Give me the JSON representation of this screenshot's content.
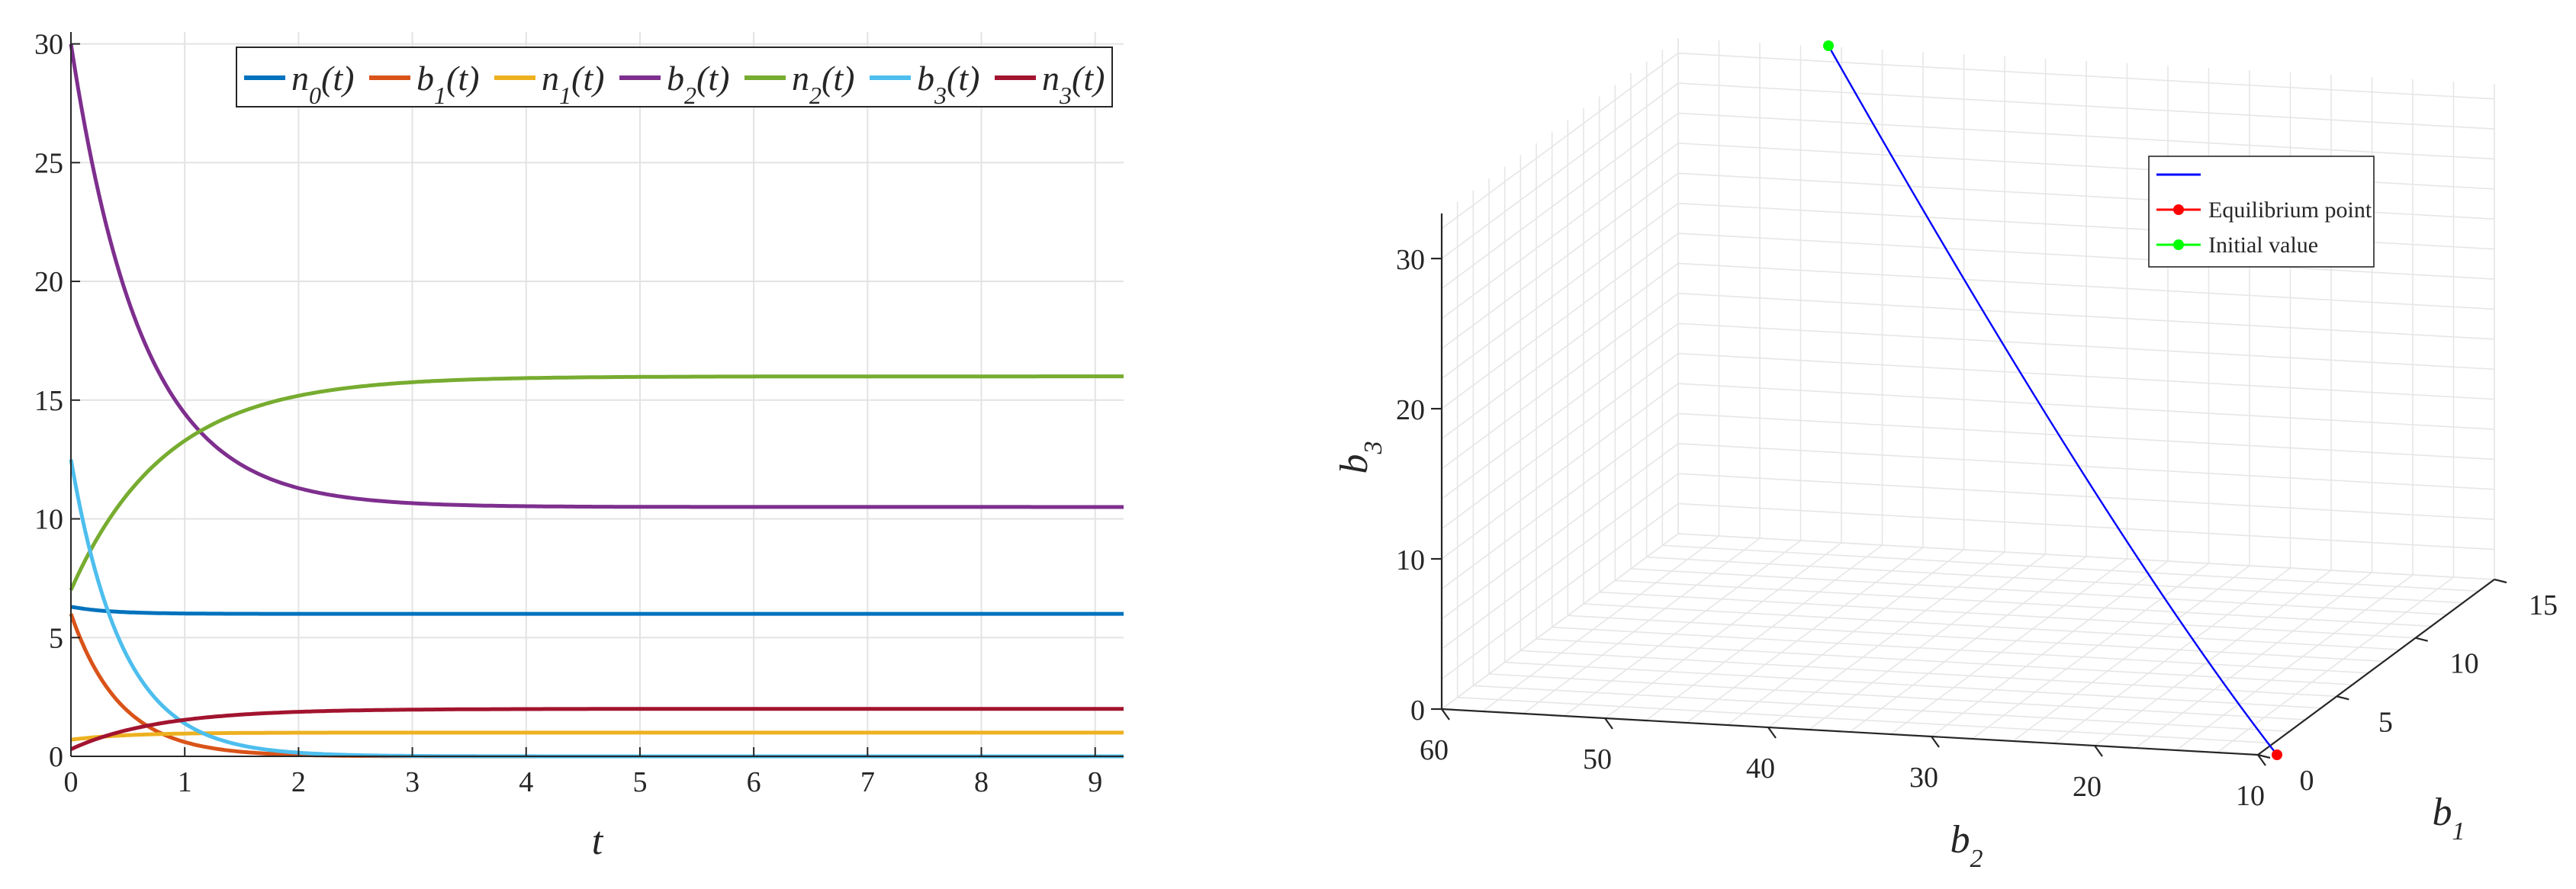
{
  "chart_data": [
    {
      "type": "line",
      "xlabel": "t",
      "ylabel": "",
      "xlim": [
        0,
        9.25
      ],
      "ylim": [
        0,
        30.5
      ],
      "x_ticks": [
        "0",
        "1",
        "2",
        "3",
        "4",
        "5",
        "6",
        "7",
        "8",
        "9"
      ],
      "y_ticks": [
        "0",
        "5",
        "10",
        "15",
        "20",
        "25",
        "30"
      ],
      "grid": true,
      "legend_position": "top-right",
      "series": [
        {
          "name": "n0",
          "sub": "0",
          "letter": "n",
          "color": "#0072BD",
          "start": 6.3,
          "end": 6.0,
          "rate": 3.0
        },
        {
          "name": "b1",
          "sub": "1",
          "letter": "b",
          "color": "#D95319",
          "start": 6.0,
          "end": 0.0,
          "rate": 2.3
        },
        {
          "name": "n1",
          "sub": "1",
          "letter": "n",
          "color": "#EDB120",
          "start": 0.7,
          "end": 1.0,
          "rate": 2.0
        },
        {
          "name": "b2",
          "sub": "2",
          "letter": "b",
          "color": "#7E2F8E",
          "start": 30.0,
          "end": 10.5,
          "rate": 1.6
        },
        {
          "name": "n2",
          "sub": "2",
          "letter": "n",
          "color": "#77AC30",
          "start": 7.0,
          "end": 16.0,
          "rate": 1.2
        },
        {
          "name": "b3",
          "sub": "3",
          "letter": "b",
          "color": "#4DBEEE",
          "start": 12.5,
          "end": 0.0,
          "rate": 2.2
        },
        {
          "name": "n3",
          "sub": "3",
          "letter": "n",
          "color": "#A2142F",
          "start": 0.3,
          "end": 2.0,
          "rate": 1.3
        }
      ]
    },
    {
      "type": "line3d",
      "xlabel": "b2",
      "ylabel": "b1",
      "zlabel": "b3",
      "x_ticks": [
        "60",
        "50",
        "40",
        "30",
        "20",
        "10"
      ],
      "y_ticks": [
        "0",
        "5",
        "10",
        "15"
      ],
      "z_ticks": [
        "0",
        "10",
        "20",
        "30"
      ],
      "grid": true,
      "legend_position": "top-right",
      "trajectory_color": "#0000FF",
      "legend": [
        {
          "label": "",
          "color": "#0000FF",
          "marker": false
        },
        {
          "label": "Equilibrium point",
          "color": "#FF0000",
          "marker": true
        },
        {
          "label": "Initial value",
          "color": "#00FF00",
          "marker": true
        }
      ]
    }
  ]
}
